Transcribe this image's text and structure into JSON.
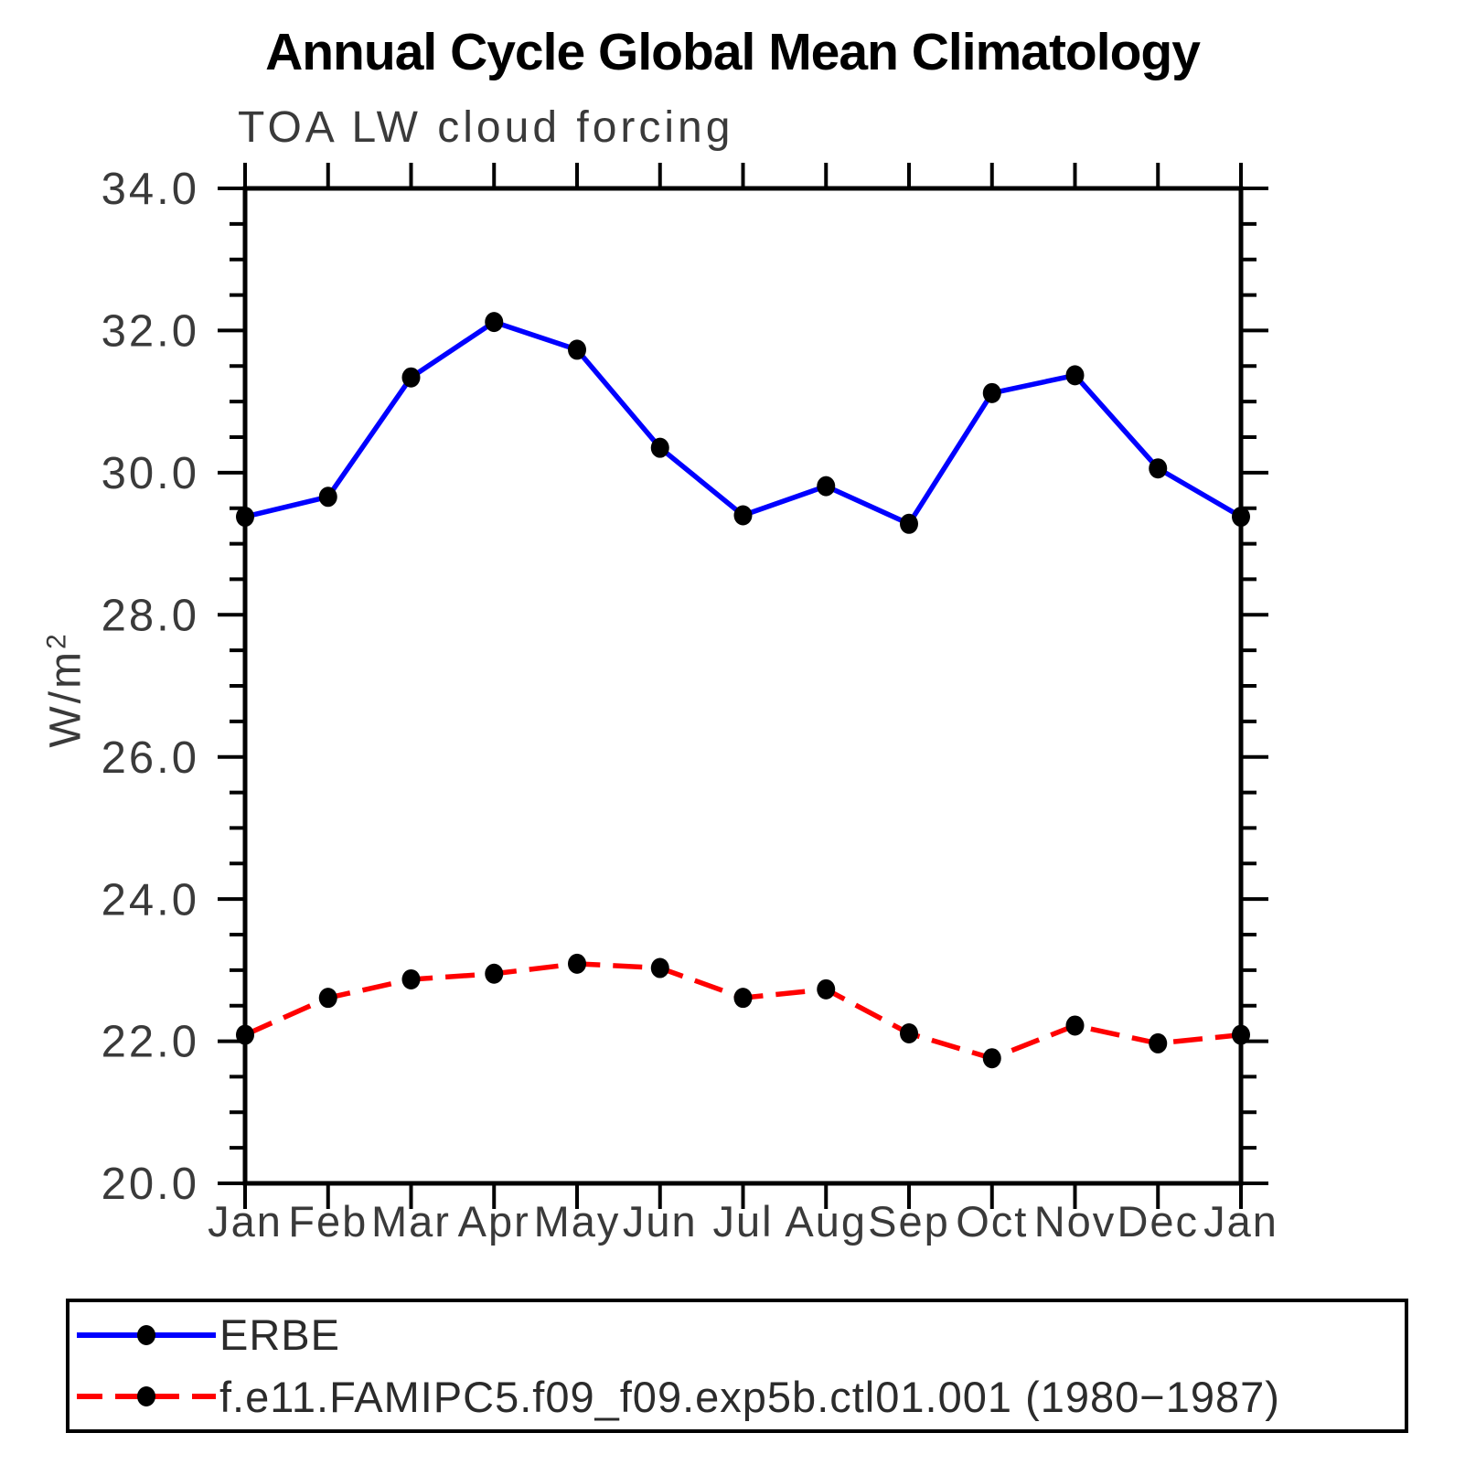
{
  "title": "Annual Cycle Global Mean Climatology",
  "subtitle": "TOA LW cloud forcing",
  "y_axis": {
    "label_base": "W/m",
    "label_sup": "2"
  },
  "chart_data": {
    "type": "line",
    "title": "Annual Cycle Global Mean Climatology",
    "subtitle": "TOA LW cloud forcing",
    "xlabel": "",
    "ylabel": "W/m²",
    "categories": [
      "Jan",
      "Feb",
      "Mar",
      "Apr",
      "May",
      "Jun",
      "Jul",
      "Aug",
      "Sep",
      "Oct",
      "Nov",
      "Dec",
      "Jan"
    ],
    "ylim": [
      20.0,
      34.0
    ],
    "ytick_major": 2.0,
    "ytick_minor": 0.5,
    "ytick_labels": [
      "20.0",
      "22.0",
      "24.0",
      "26.0",
      "28.0",
      "30.0",
      "32.0",
      "34.0"
    ],
    "grid": false,
    "legend_position": "bottom",
    "series": [
      {
        "name": "ERBE",
        "color": "#0000ff",
        "style": "solid",
        "marker_color": "#000000",
        "values": [
          29.38,
          29.66,
          31.34,
          32.12,
          31.73,
          30.35,
          29.4,
          29.81,
          29.28,
          31.12,
          31.37,
          30.06,
          29.38
        ]
      },
      {
        "name": "f.e11.FAMIPC5.f09_f09.exp5b.ctl01.001 (1980−1987)",
        "color": "#ff0000",
        "style": "dashed",
        "marker_color": "#000000",
        "values": [
          22.09,
          22.61,
          22.87,
          22.95,
          23.09,
          23.03,
          22.61,
          22.73,
          22.11,
          21.76,
          22.22,
          21.97,
          22.09
        ]
      }
    ]
  }
}
